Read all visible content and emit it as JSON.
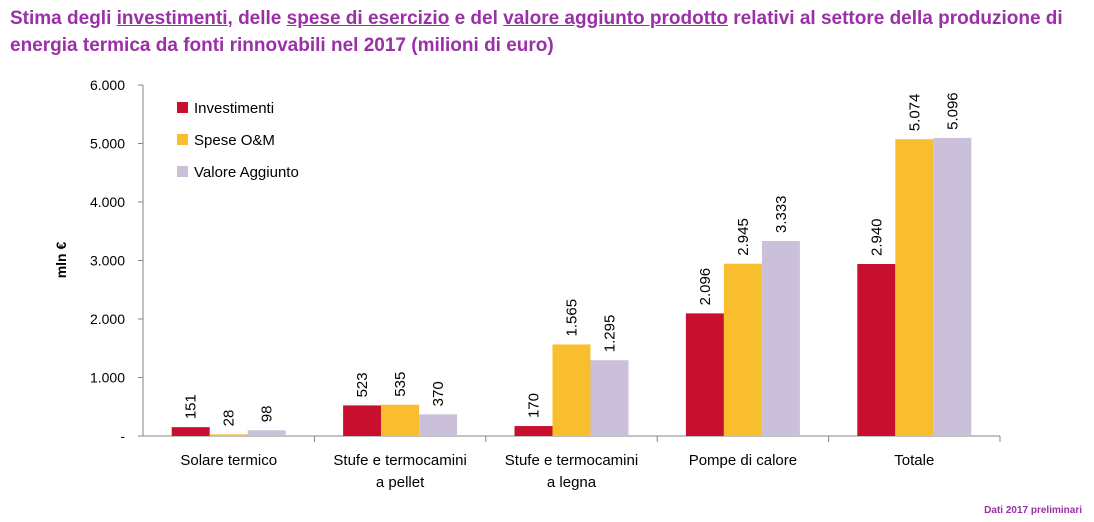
{
  "title": {
    "parts": [
      {
        "text": "Stima degli ",
        "u": false
      },
      {
        "text": "investimenti",
        "u": true
      },
      {
        "text": ", delle ",
        "u": false
      },
      {
        "text": "spese di esercizio",
        "u": true
      },
      {
        "text": " e del ",
        "u": false
      },
      {
        "text": "valore aggiunto prodotto",
        "u": true
      },
      {
        "text": " relativi al settore della produzione di energia termica da fonti rinnovabili nel 2017 (milioni di euro)",
        "u": false
      }
    ]
  },
  "footnote": "Dati 2017 preliminari",
  "chart_data": {
    "type": "bar",
    "title": "Stima degli investimenti, delle spese di esercizio e del valore aggiunto prodotto relativi al settore della produzione di energia termica da fonti rinnovabili nel 2017 (milioni di euro)",
    "xlabel": "",
    "ylabel": "mln €",
    "ylim": [
      0,
      6000
    ],
    "yticks": [
      0,
      1000,
      2000,
      3000,
      4000,
      5000,
      6000
    ],
    "ytick_labels": [
      "-",
      "1.000",
      "2.000",
      "3.000",
      "4.000",
      "5.000",
      "6.000"
    ],
    "grid": false,
    "legend": "top-left",
    "categories": [
      [
        "Solare termico"
      ],
      [
        "Stufe e termocamini",
        "a pellet"
      ],
      [
        "Stufe e termocamini",
        "a legna"
      ],
      [
        "Pompe di calore"
      ],
      [
        "Totale"
      ]
    ],
    "series": [
      {
        "name": "Investimenti",
        "color": "#C8102E",
        "values": [
          151,
          523,
          170,
          2096,
          2940
        ],
        "labels": [
          "151",
          "523",
          "170",
          "2.096",
          "2.940"
        ]
      },
      {
        "name": "Spese O&M",
        "color": "#F9BE2E",
        "values": [
          28,
          535,
          1565,
          2945,
          5074
        ],
        "labels": [
          "28",
          "535",
          "1.565",
          "2.945",
          "5.074"
        ]
      },
      {
        "name": "Valore Aggiunto",
        "color": "#CBC0DA",
        "values": [
          98,
          370,
          1295,
          3333,
          5096
        ],
        "labels": [
          "98",
          "370",
          "1.295",
          "3.333",
          "5.096"
        ]
      }
    ]
  }
}
